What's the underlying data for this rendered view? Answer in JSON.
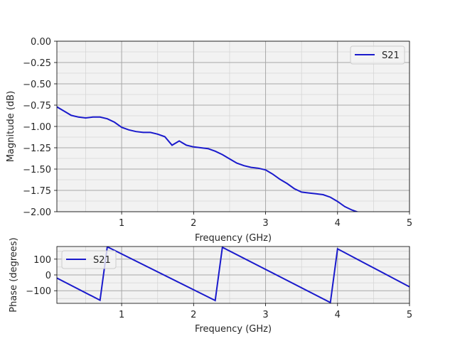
{
  "chart_data": [
    {
      "type": "line",
      "xlabel": "Frequency (GHz)",
      "ylabel": "Magnitude (dB)",
      "xlim": [
        0.1,
        5
      ],
      "ylim": [
        -2.0,
        0.0
      ],
      "xticks": [
        "1",
        "2",
        "3",
        "4",
        "5"
      ],
      "yticks": [
        "0.00",
        "−0.25",
        "−0.50",
        "−0.75",
        "−1.00",
        "−1.25",
        "−1.50",
        "−1.75",
        "−2.00"
      ],
      "grid": true,
      "minor_grid": true,
      "legend_position": "top-right",
      "series": [
        {
          "name": "S21",
          "color": "#1a1acc",
          "x": [
            0.1,
            0.2,
            0.3,
            0.4,
            0.5,
            0.6,
            0.7,
            0.8,
            0.9,
            1.0,
            1.1,
            1.2,
            1.3,
            1.4,
            1.5,
            1.6,
            1.7,
            1.8,
            1.9,
            2.0,
            2.1,
            2.2,
            2.3,
            2.4,
            2.5,
            2.6,
            2.7,
            2.8,
            2.9,
            3.0,
            3.1,
            3.2,
            3.3,
            3.4,
            3.5,
            3.6,
            3.7,
            3.8,
            3.9,
            4.0,
            4.1,
            4.2,
            4.3
          ],
          "y": [
            -0.77,
            -0.82,
            -0.87,
            -0.89,
            -0.9,
            -0.89,
            -0.89,
            -0.91,
            -0.95,
            -1.01,
            -1.04,
            -1.06,
            -1.07,
            -1.07,
            -1.09,
            -1.12,
            -1.22,
            -1.17,
            -1.22,
            -1.24,
            -1.25,
            -1.26,
            -1.29,
            -1.33,
            -1.38,
            -1.43,
            -1.46,
            -1.48,
            -1.49,
            -1.51,
            -1.56,
            -1.62,
            -1.67,
            -1.73,
            -1.77,
            -1.78,
            -1.79,
            -1.8,
            -1.83,
            -1.88,
            -1.94,
            -1.98,
            -2.01
          ]
        }
      ]
    },
    {
      "type": "line",
      "xlabel": "Frequency (GHz)",
      "ylabel": "Phase (degrees)",
      "xlim": [
        0.1,
        5
      ],
      "ylim": [
        -180,
        180
      ],
      "xticks": [
        "1",
        "2",
        "3",
        "4",
        "5"
      ],
      "yticks": [
        "100",
        "0",
        "−100"
      ],
      "grid": true,
      "minor_grid": true,
      "legend_position": "top-left",
      "series": [
        {
          "name": "S21",
          "color": "#1a1acc",
          "x": [
            0.1,
            0.7,
            0.8,
            2.3,
            2.4,
            3.9,
            4.0,
            5.0
          ],
          "y": [
            -20,
            -160,
            178,
            -162,
            175,
            -175,
            165,
            -75
          ]
        }
      ]
    }
  ]
}
